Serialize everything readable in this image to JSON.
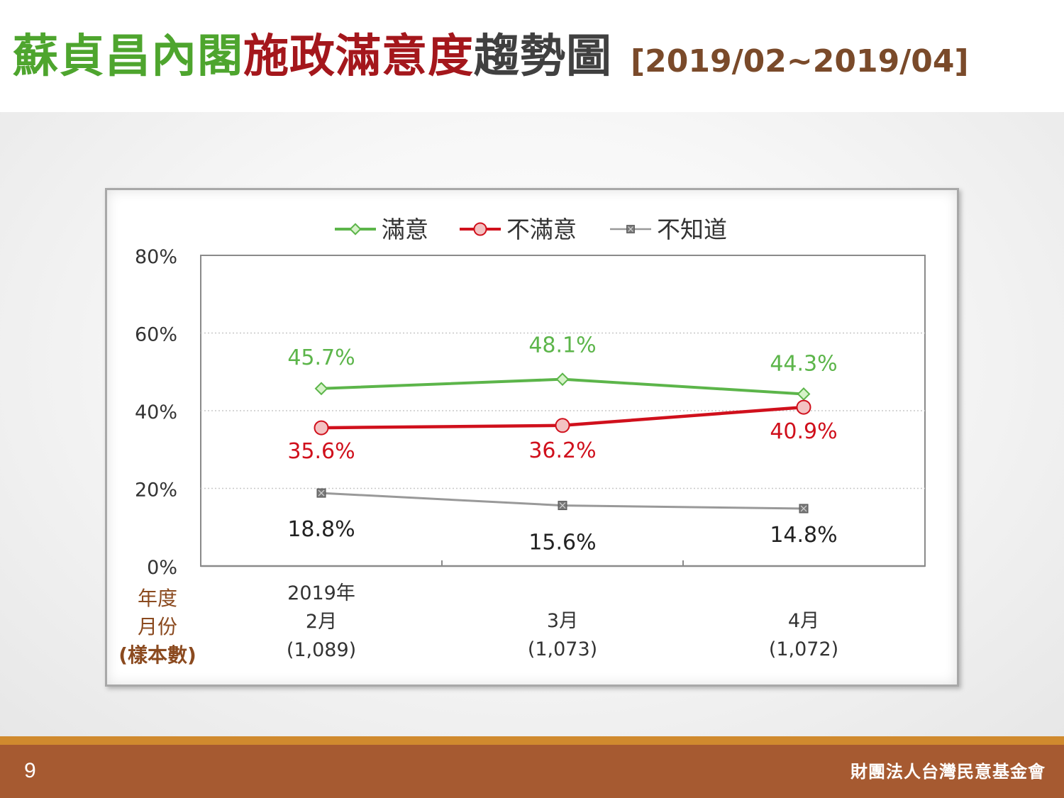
{
  "header": {
    "title_part1": "蘇貞昌內閣",
    "title_part2": "施政滿意度",
    "title_part3": "趨勢圖",
    "date_range": "[2019/02~2019/04]"
  },
  "footer": {
    "page_number": "9",
    "organization": "財團法人台灣民意基金會"
  },
  "colors": {
    "satisfied": "#5cb54a",
    "dissatisfied": "#d0101c",
    "unknown": "#999999",
    "footer_bg": "#a65a31",
    "footer_stripe": "#d08a2e"
  },
  "chart_data": {
    "type": "line",
    "categories": [
      "2019年 2月",
      "3月",
      "4月"
    ],
    "category_lines": [
      [
        "2019年",
        "2月",
        "(1,089)"
      ],
      [
        "3月",
        "(1,073)"
      ],
      [
        "4月",
        "(1,072)"
      ]
    ],
    "x_axis_title_lines": [
      "年度",
      "月份",
      "(樣本數)"
    ],
    "series": [
      {
        "name": "滿意",
        "values": [
          45.7,
          48.1,
          44.3
        ],
        "labels": [
          "45.7%",
          "48.1%",
          "44.3%"
        ],
        "marker": "diamond"
      },
      {
        "name": "不滿意",
        "values": [
          35.6,
          36.2,
          40.9
        ],
        "labels": [
          "35.6%",
          "36.2%",
          "40.9%"
        ],
        "marker": "circle"
      },
      {
        "name": "不知道",
        "values": [
          18.8,
          15.6,
          14.8
        ],
        "labels": [
          "18.8%",
          "15.6%",
          "14.8%"
        ],
        "marker": "square-x"
      }
    ],
    "y_ticks": [
      "0%",
      "20%",
      "40%",
      "60%",
      "80%"
    ],
    "ylim": [
      0,
      80
    ],
    "grid": true,
    "legend_position": "top-center"
  }
}
